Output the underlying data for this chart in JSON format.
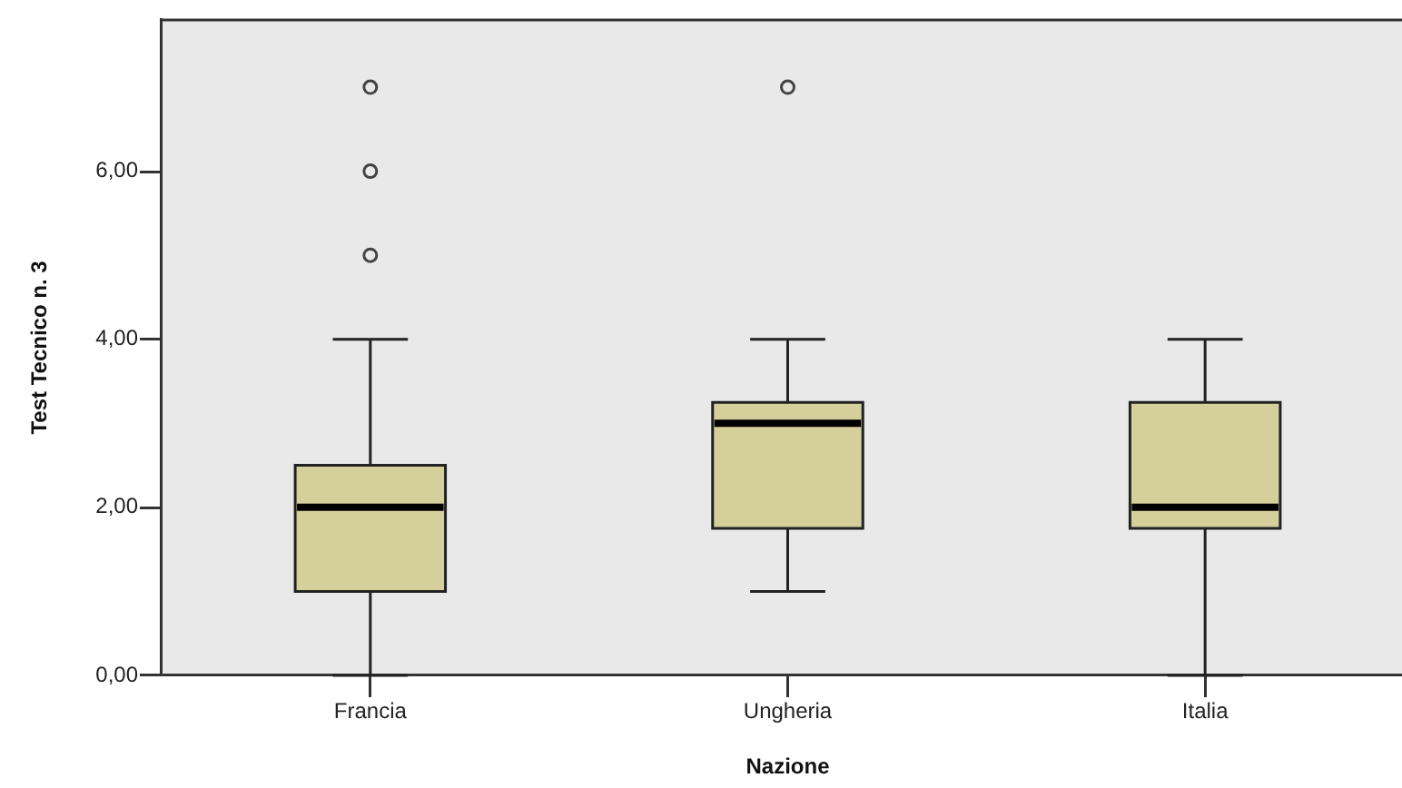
{
  "chart_data": {
    "type": "box",
    "xlabel": "Nazione",
    "ylabel": "Test Tecnico n. 3",
    "categories": [
      "Francia",
      "Ungheria",
      "Italia"
    ],
    "boxes": [
      {
        "low": 0,
        "q1": 1,
        "median": 2,
        "q3": 2.5,
        "high": 4,
        "outliers": [
          5,
          6,
          7
        ]
      },
      {
        "low": 1,
        "q1": 1.75,
        "median": 3,
        "q3": 3.25,
        "high": 4,
        "outliers": [
          7
        ]
      },
      {
        "low": 0,
        "q1": 1.75,
        "median": 2,
        "q3": 3.25,
        "high": 4
      }
    ],
    "color": "#d4cf9b",
    "ylim": [
      0,
      7.8
    ],
    "yticks": [
      {
        "value": 0,
        "label": "0,00"
      },
      {
        "value": 2,
        "label": "2,00"
      },
      {
        "value": 4,
        "label": "4,00"
      },
      {
        "value": 6,
        "label": "6,00"
      }
    ]
  }
}
